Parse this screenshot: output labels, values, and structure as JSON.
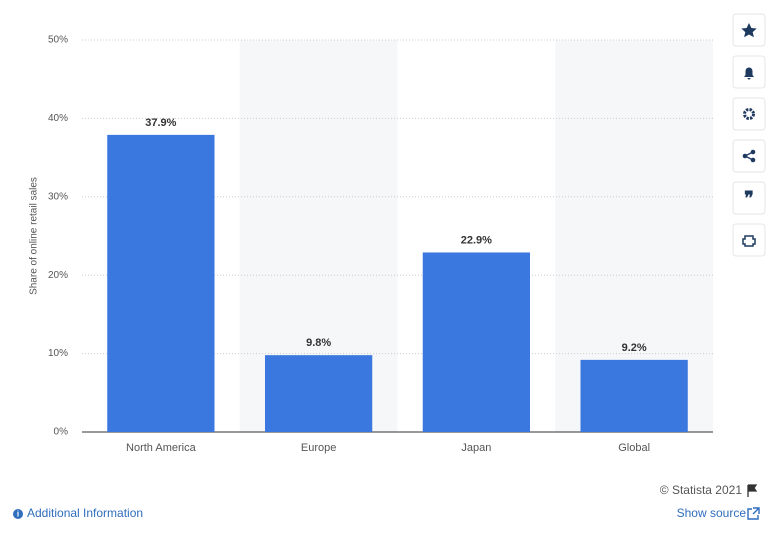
{
  "chart_data": {
    "type": "bar",
    "y_axis_label": "Share of online retail sales",
    "categories": [
      "North America",
      "Europe",
      "Japan",
      "Global"
    ],
    "values": [
      37.9,
      9.8,
      22.9,
      9.2
    ],
    "value_labels": [
      "37.9%",
      "9.8%",
      "22.9%",
      "9.2%"
    ],
    "color": "#3a78e0",
    "ylim": [
      0,
      50
    ],
    "yticks": [
      {
        "value": 0,
        "label": "0%"
      },
      {
        "value": 10,
        "label": "10%"
      },
      {
        "value": 20,
        "label": "20%"
      },
      {
        "value": 30,
        "label": "30%"
      },
      {
        "value": 40,
        "label": "40%"
      },
      {
        "value": 50,
        "label": "50%"
      }
    ],
    "grid": true
  },
  "footer": {
    "credit": "© Statista 2021",
    "additional_info": "Additional Information",
    "show_source": "Show source"
  }
}
